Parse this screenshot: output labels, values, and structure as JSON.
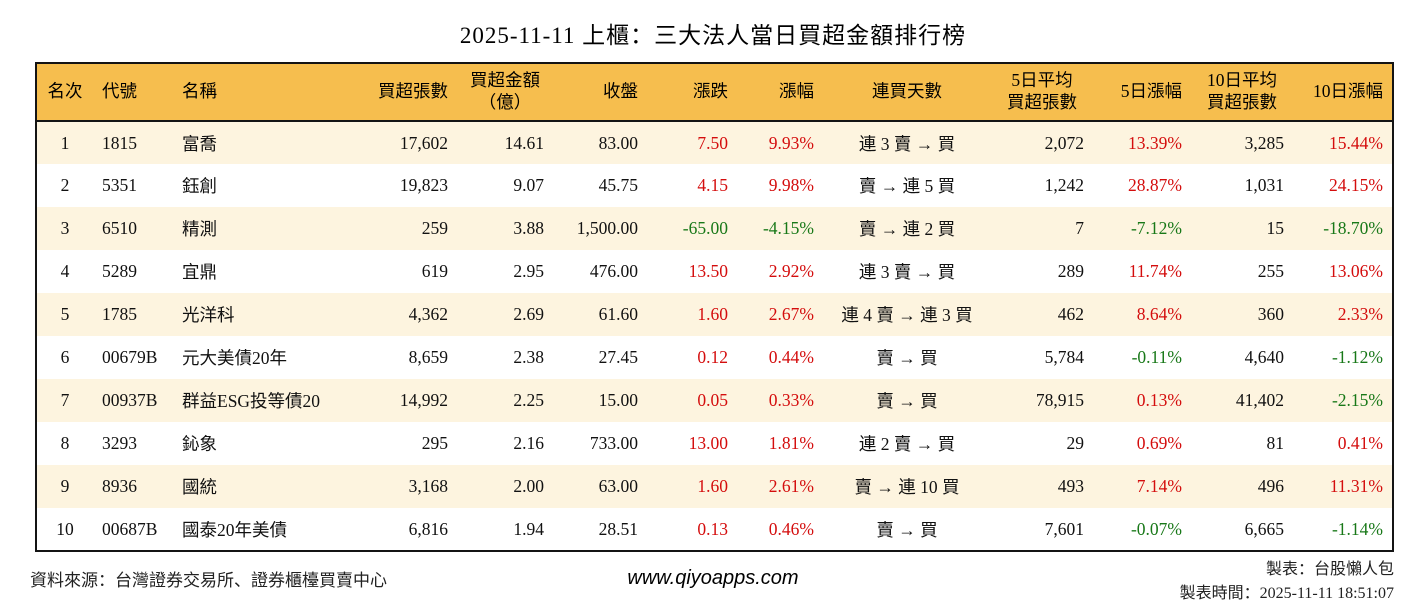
{
  "title": "2025-11-11 上櫃：三大法人當日買超金額排行榜",
  "colors": {
    "header_bg": "#F6BE4E",
    "row_stripe": "#FDF4DF",
    "up_red": "#D40D0D",
    "down_green": "#187818",
    "border": "#141414"
  },
  "table": {
    "row_keys": [
      "rank",
      "code",
      "name",
      "vol",
      "amt",
      "close",
      "chg",
      "chg_pct",
      "streak",
      "avg5",
      "pct5",
      "avg10",
      "pct10"
    ],
    "signed_columns": [
      "chg",
      "chg_pct",
      "pct5",
      "pct10"
    ],
    "headers": [
      "名次",
      "代號",
      "名稱",
      "買超張數",
      "買超金額\n（億）",
      "收盤",
      "漲跌",
      "漲幅",
      "連買天數",
      "5日平均\n買超張數",
      "5日漲幅",
      "10日平均\n買超張數",
      "10日漲幅"
    ],
    "rows": [
      {
        "rank": "1",
        "code": "1815",
        "name": "富喬",
        "vol": "17,602",
        "amt": "14.61",
        "close": "83.00",
        "chg": "7.50",
        "chg_pct": "9.93%",
        "streak": "連 3 賣 → 買",
        "avg5": "2,072",
        "pct5": "13.39%",
        "avg10": "3,285",
        "pct10": "15.44%"
      },
      {
        "rank": "2",
        "code": "5351",
        "name": "鈺創",
        "vol": "19,823",
        "amt": "9.07",
        "close": "45.75",
        "chg": "4.15",
        "chg_pct": "9.98%",
        "streak": "賣 → 連 5 買",
        "avg5": "1,242",
        "pct5": "28.87%",
        "avg10": "1,031",
        "pct10": "24.15%"
      },
      {
        "rank": "3",
        "code": "6510",
        "name": "精測",
        "vol": "259",
        "amt": "3.88",
        "close": "1,500.00",
        "chg": "-65.00",
        "chg_pct": "-4.15%",
        "streak": "賣 → 連 2 買",
        "avg5": "7",
        "pct5": "-7.12%",
        "avg10": "15",
        "pct10": "-18.70%"
      },
      {
        "rank": "4",
        "code": "5289",
        "name": "宜鼎",
        "vol": "619",
        "amt": "2.95",
        "close": "476.00",
        "chg": "13.50",
        "chg_pct": "2.92%",
        "streak": "連 3 賣 → 買",
        "avg5": "289",
        "pct5": "11.74%",
        "avg10": "255",
        "pct10": "13.06%"
      },
      {
        "rank": "5",
        "code": "1785",
        "name": "光洋科",
        "vol": "4,362",
        "amt": "2.69",
        "close": "61.60",
        "chg": "1.60",
        "chg_pct": "2.67%",
        "streak": "連 4 賣 → 連 3 買",
        "avg5": "462",
        "pct5": "8.64%",
        "avg10": "360",
        "pct10": "2.33%"
      },
      {
        "rank": "6",
        "code": "00679B",
        "name": "元大美債20年",
        "vol": "8,659",
        "amt": "2.38",
        "close": "27.45",
        "chg": "0.12",
        "chg_pct": "0.44%",
        "streak": "賣 → 買",
        "avg5": "5,784",
        "pct5": "-0.11%",
        "avg10": "4,640",
        "pct10": "-1.12%"
      },
      {
        "rank": "7",
        "code": "00937B",
        "name": "群益ESG投等債20",
        "vol": "14,992",
        "amt": "2.25",
        "close": "15.00",
        "chg": "0.05",
        "chg_pct": "0.33%",
        "streak": "賣 → 買",
        "avg5": "78,915",
        "pct5": "0.13%",
        "avg10": "41,402",
        "pct10": "-2.15%"
      },
      {
        "rank": "8",
        "code": "3293",
        "name": "鈊象",
        "vol": "295",
        "amt": "2.16",
        "close": "733.00",
        "chg": "13.00",
        "chg_pct": "1.81%",
        "streak": "連 2 賣 → 買",
        "avg5": "29",
        "pct5": "0.69%",
        "avg10": "81",
        "pct10": "0.41%"
      },
      {
        "rank": "9",
        "code": "8936",
        "name": "國統",
        "vol": "3,168",
        "amt": "2.00",
        "close": "63.00",
        "chg": "1.60",
        "chg_pct": "2.61%",
        "streak": "賣 → 連 10 買",
        "avg5": "493",
        "pct5": "7.14%",
        "avg10": "496",
        "pct10": "11.31%"
      },
      {
        "rank": "10",
        "code": "00687B",
        "name": "國泰20年美債",
        "vol": "6,816",
        "amt": "1.94",
        "close": "28.51",
        "chg": "0.13",
        "chg_pct": "0.46%",
        "streak": "賣 → 買",
        "avg5": "7,601",
        "pct5": "-0.07%",
        "avg10": "6,665",
        "pct10": "-1.14%"
      }
    ]
  },
  "footer": {
    "source": "資料來源：台灣證券交易所、證券櫃檯買賣中心",
    "site": "www.qiyoapps.com",
    "maker": "製表：台股懶人包",
    "generated": "製表時間：2025-11-11 18:51:07"
  }
}
